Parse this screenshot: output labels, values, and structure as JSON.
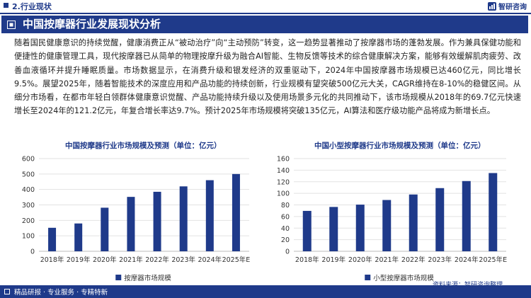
{
  "header": {
    "section": "2.行业现状",
    "brand": "智研咨询"
  },
  "banner": {
    "title": "中国按摩器行业发展现状分析"
  },
  "paragraph": "随着国民健康意识的持续觉醒，健康消费正从“被动治疗”向“主动预防”转变，这一趋势显著推动了按摩器市场的蓬勃发展。作为兼具保健功能和便捷性的健康管理工具，现代按摩器已从简单的物理按摩升级为融合AI智能、生物反馈等技术的综合健康解决方案，能够有效缓解肌肉疲劳、改善血液循环并提升睡眠质量。市场数据显示，在消费升级和银发经济的双重驱动下，2024年中国按摩器市场规模已达460亿元，同比增长9.5%。展望2025年，随着智能技术的深度应用和产品功能的持续创新，行业规模有望突破500亿元大关，CAGR维持在8-10%的稳健区间。从细分市场看，在都市年轻白领群体健康意识觉醒、产品功能持续升级以及使用场景多元化的共同推动下，该市场规模从2018年的69.7亿元快速增长至2024年的121.2亿元，年复合增长率达9.7%。预计2025年市场规模将突破135亿元，AI算法和医疗级功能产品将成为新增长点。",
  "colors": {
    "brand": "#1f3a8a",
    "bar": "#1f3a8a",
    "grid": "#e2e2e2",
    "axis_text": "#333333"
  },
  "chart_data": [
    {
      "type": "bar",
      "title": "中国按摩器行业市场规模及预测（单位：亿元）",
      "categories": [
        "2018年",
        "2019年",
        "2020年",
        "2021年",
        "2022年",
        "2023年",
        "2024年",
        "2025年E"
      ],
      "series": [
        {
          "name": "按摩器市场规模",
          "values": [
            152,
            180,
            282,
            352,
            385,
            420,
            460,
            500
          ]
        }
      ],
      "yticks": [
        0,
        100,
        200,
        300,
        400,
        500,
        600
      ],
      "ylim": [
        0,
        600
      ],
      "grid": true,
      "legend": "bottom-center"
    },
    {
      "type": "bar",
      "title": "中国小型按摩器行业市场规模及预测（单位：亿元）",
      "categories": [
        "2018年",
        "2019年",
        "2020年",
        "2021年",
        "2022年",
        "2023年",
        "2024年",
        "2025年E"
      ],
      "series": [
        {
          "name": "小型按摩器市场规模",
          "values": [
            69.7,
            76.5,
            80.5,
            88.5,
            98,
            109,
            121.2,
            135
          ]
        }
      ],
      "yticks": [
        0,
        20,
        40,
        60,
        80,
        100,
        120,
        140,
        160
      ],
      "ylim": [
        0,
        160
      ],
      "grid": true,
      "legend": "bottom-center"
    }
  ],
  "source": "资料来源：智研咨询整理",
  "footer": {
    "tagline": "精品研报 · 专业服务 · 专精特新"
  }
}
